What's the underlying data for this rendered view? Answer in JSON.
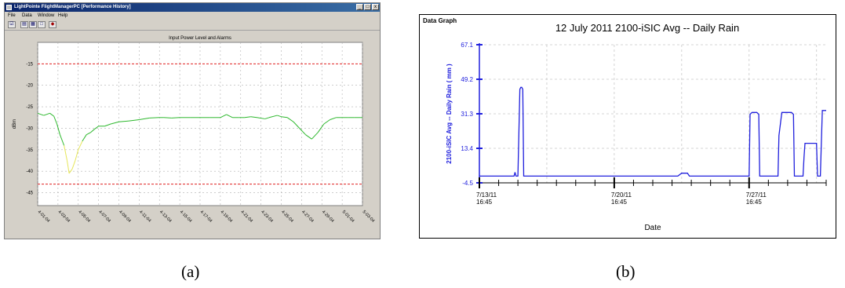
{
  "panel_a": {
    "window_title": "LightPointe FlightManagerPC  [Performance History]",
    "menu": [
      "File",
      "Data",
      "Window",
      "Help"
    ],
    "toolbar_icons": [
      "toggle-icon",
      "graph-icon",
      "table-icon",
      "window-icon",
      "print-icon"
    ],
    "window_buttons": [
      "_",
      "□",
      "x"
    ],
    "chart_data": {
      "type": "line",
      "title": "Input Power Level and Alarms",
      "ylabel": "dBm",
      "xlabel": "",
      "ylim": [
        -48,
        -10
      ],
      "y_ticks": [
        -15,
        -20,
        -25,
        -30,
        -35,
        -40,
        -45
      ],
      "x_ticks": [
        "4-01-04",
        "4-03-04",
        "4-05-04",
        "4-07-04",
        "4-09-04",
        "4-11-04",
        "4-13-04",
        "4-15-04",
        "4-17-04",
        "4-19-04",
        "4-21-04",
        "4-23-04",
        "4-25-04",
        "4-27-04",
        "4-29-04",
        "5-01-04",
        "5-03-04"
      ],
      "alarm_lines": [
        -15,
        -43
      ],
      "colors": {
        "signal": "#2db82d",
        "low_signal": "#e6e65a",
        "alarm": "#e02020",
        "grid": "#b0b0b0"
      },
      "series": [
        {
          "x": [
            0,
            0.3,
            0.6,
            0.8,
            0.95,
            1.1,
            1.3,
            1.45,
            1.55,
            1.7,
            1.85,
            2,
            2.2,
            2.4,
            2.6,
            2.8,
            3,
            3.3,
            3.6,
            4,
            4.5,
            5,
            5.5,
            6,
            6.2,
            6.6,
            7,
            7.5,
            8,
            8.5,
            9,
            9.3,
            9.6,
            9.9,
            10.2,
            10.5,
            10.8,
            11.2,
            11.4,
            11.8,
            12,
            12.3,
            12.6,
            12.9,
            13.2,
            13.5,
            13.8,
            14.1,
            14.4,
            14.7,
            15,
            15.3,
            15.6,
            15.9,
            16
          ],
          "y": [
            -26.5,
            -27,
            -26.5,
            -27.2,
            -29,
            -31.5,
            -34,
            -37.5,
            -40.5,
            -39.5,
            -37.5,
            -35,
            -33,
            -31.5,
            -31,
            -30.2,
            -29.5,
            -29.5,
            -29,
            -28.5,
            -28.3,
            -28,
            -27.6,
            -27.5,
            -27.5,
            -27.6,
            -27.5,
            -27.5,
            -27.5,
            -27.5,
            -27.5,
            -26.8,
            -27.5,
            -27.5,
            -27.5,
            -27.3,
            -27.5,
            -27.8,
            -27.5,
            -27,
            -27.3,
            -27.5,
            -28.5,
            -30,
            -31.5,
            -32.5,
            -31,
            -29,
            -28,
            -27.5,
            -27.5,
            -27.5,
            -27.5,
            -27.5,
            -27.5
          ]
        }
      ]
    },
    "caption": "(a)"
  },
  "panel_b": {
    "header": "Data Graph",
    "chart_data": {
      "type": "line",
      "title": "12 July 2011  2100-iSIC   Avg -- Daily Rain",
      "ylabel": "2100-iSIC   Avg -- Daily Rain  ( mm )",
      "xlabel": "Date",
      "ylim": [
        -4.5,
        67.1
      ],
      "y_ticks": [
        "-4.5",
        "13.4",
        "31.3",
        "49.2",
        "67.1"
      ],
      "y_tick_values": [
        -4.5,
        13.4,
        31.3,
        49.2,
        67.1
      ],
      "x_ticks": [
        {
          "day": 0,
          "date": "7/13/11",
          "time": "16:45"
        },
        {
          "day": 7,
          "date": "7/20/11",
          "time": "16:45"
        },
        {
          "day": 14,
          "date": "7/27/11",
          "time": "16:45"
        }
      ],
      "xlim": [
        0,
        18
      ],
      "grid": true,
      "colors": {
        "line": "#2020dd",
        "axis": "#2020dd",
        "grid": "#c8c8c8"
      },
      "series": [
        {
          "x": [
            0,
            1.8,
            1.85,
            1.9,
            2.0,
            2.1,
            2.15,
            2.2,
            2.25,
            2.3,
            2.35,
            10.3,
            10.5,
            10.8,
            10.9,
            11.5,
            11.7,
            14.0,
            14.05,
            14.15,
            14.4,
            14.5,
            14.55,
            15.5,
            15.55,
            15.7,
            16.2,
            16.3,
            16.35,
            16.8,
            16.85,
            16.9,
            17.0,
            17.5,
            17.55,
            17.7,
            17.8,
            18
          ],
          "y": [
            -1,
            -1,
            1,
            -1,
            -1,
            44,
            45,
            45,
            44,
            -1,
            -1,
            -1,
            0.5,
            0.5,
            -1,
            -1,
            -1,
            -1,
            31,
            32,
            32,
            31,
            -1,
            -1,
            20,
            32,
            32,
            31,
            -1,
            -1,
            9,
            16,
            16,
            16,
            -1,
            -1,
            33,
            33
          ]
        }
      ]
    },
    "caption": "(b)"
  }
}
